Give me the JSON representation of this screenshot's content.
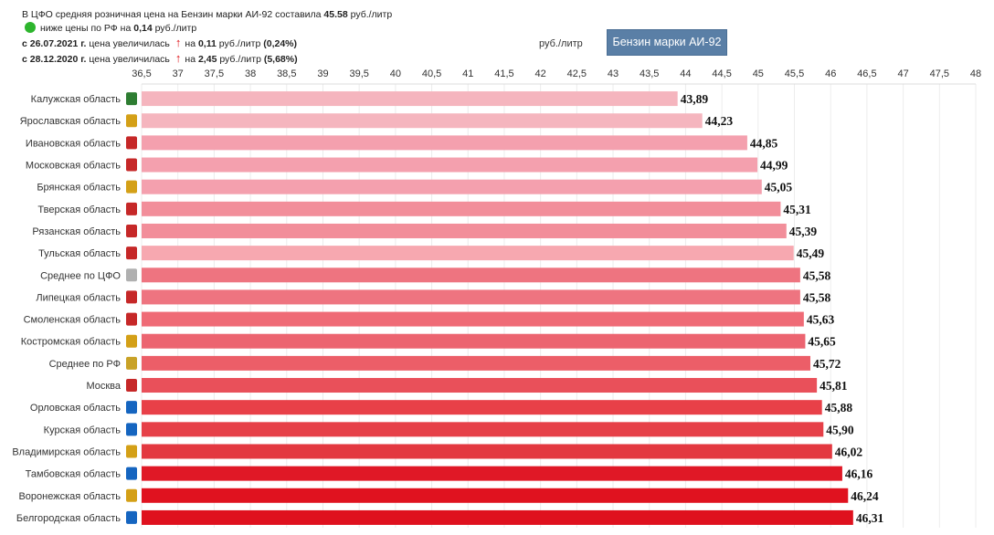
{
  "info": {
    "line1_prefix": "В ЦФО средняя розничная цена на Бензин марки АИ-92 составила ",
    "line1_value": "45.58",
    "line1_suffix": " руб./литр",
    "line2_prefix": "ниже цены по РФ на ",
    "line2_value": "0,14",
    "line2_suffix": " руб./литр",
    "line3_date": "с 26.07.2021 г.",
    "line3_text": " цена увеличилась",
    "line3_delta_prefix": "на ",
    "line3_delta": "0,11",
    "line3_delta_unit": " руб./литр ",
    "line3_pct": "(0,24%)",
    "line4_date": "с 28.12.2020 г.",
    "line4_text": " цена увеличилась",
    "line4_delta_prefix": "на ",
    "line4_delta": "2,45",
    "line4_delta_unit": " руб./литр ",
    "line4_pct": "(5,68%)",
    "status_color": "#2db52d",
    "arrow_color": "#e0161b"
  },
  "unit_label": "руб./литр",
  "fuel_button_label": "Бензин марки АИ-92",
  "chart_data": {
    "type": "bar",
    "orientation": "horizontal",
    "title": "",
    "xlabel": "руб./литр",
    "ylabel": "",
    "xlim": [
      36.5,
      48
    ],
    "grid": true,
    "tick_labels": [
      "36,5",
      "37",
      "37,5",
      "38",
      "38,5",
      "39",
      "39,5",
      "40",
      "40,5",
      "41",
      "41,5",
      "42",
      "42,5",
      "43",
      "43,5",
      "44",
      "44,5",
      "45",
      "45,5",
      "46",
      "46,5",
      "47",
      "47,5",
      "48"
    ],
    "categories": [
      "Калужская область",
      "Ярославская область",
      "Ивановская область",
      "Московская область",
      "Брянская область",
      "Тверская область",
      "Рязанская область",
      "Тульская область",
      "Среднее по ЦФО",
      "Липецкая область",
      "Смоленская область",
      "Костромская область",
      "Среднее по РФ",
      "Москва",
      "Орловская область",
      "Курская область",
      "Владимирская область",
      "Тамбовская область",
      "Воронежская область",
      "Белгородская область"
    ],
    "values": [
      43.89,
      44.23,
      44.85,
      44.99,
      45.05,
      45.31,
      45.39,
      45.49,
      45.58,
      45.58,
      45.63,
      45.65,
      45.72,
      45.81,
      45.88,
      45.9,
      46.02,
      46.16,
      46.24,
      46.31
    ],
    "value_labels": [
      "43,89",
      "44,23",
      "44,85",
      "44,99",
      "45,05",
      "45,31",
      "45,39",
      "45,49",
      "45,58",
      "45,58",
      "45,63",
      "45,65",
      "45,72",
      "45,81",
      "45,88",
      "45,90",
      "46,02",
      "46,16",
      "46,24",
      "46,31"
    ],
    "bar_colors": [
      "#f5b5be",
      "#f5b5be",
      "#f4a0ae",
      "#f4a0ae",
      "#f4a0ae",
      "#f28e9a",
      "#f28e9a",
      "#f7a8b0",
      "#ee7480",
      "#ee7480",
      "#ef6b76",
      "#ec6470",
      "#ec5e68",
      "#e9505a",
      "#e84048",
      "#e64048",
      "#e33840",
      "#e01826",
      "#e0121f",
      "#df111e"
    ],
    "emblem_colors": [
      "#2e7d32",
      "#d4a017",
      "#c62828",
      "#c62828",
      "#d4a017",
      "#c62828",
      "#c62828",
      "#c62828",
      "#b0b0b0",
      "#c62828",
      "#c62828",
      "#d4a017",
      "#c9a227",
      "#c62828",
      "#1565c0",
      "#1565c0",
      "#d4a017",
      "#1565c0",
      "#d4a017",
      "#1565c0"
    ]
  }
}
